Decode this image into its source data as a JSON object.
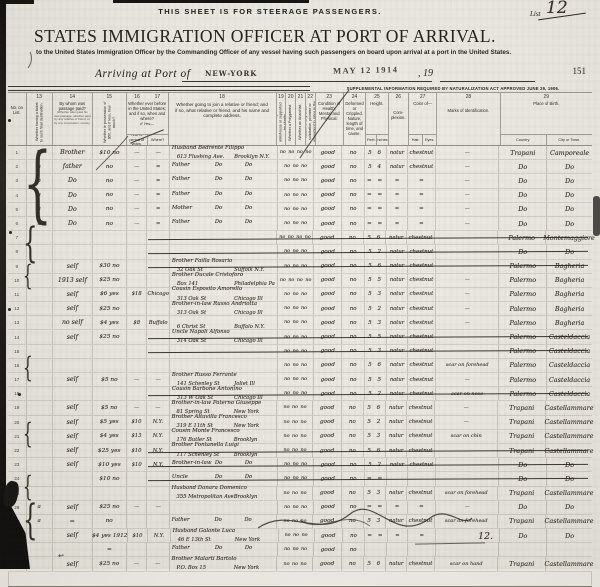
{
  "header": {
    "steerage_notice": "THIS SHEET IS FOR STEERAGE PASSENGERS.",
    "list_label": "List",
    "list_number_hw": "12",
    "title": "STATES IMMIGRATION OFFICER AT PORT OF ARRIVAL.",
    "subtitle": "to the United States Immigration Officer by the Commanding Officer of any vessel having such passengers on board upon arrival at a port in the United States.",
    "arriving_label": "Arriving at Port of",
    "port_hw": "NEW-YORK",
    "date_stamp": "MAY 12 1914",
    "year_printed": ", 19",
    "page_number": "151",
    "supplemental_banner": "SUPPLEMENTAL INFORMATION REQUIRED BY NATURALIZATION ACT APPROVED JUNE 29, 1906."
  },
  "columns": {
    "no_on_list": {
      "num": "",
      "label": "No. on List."
    },
    "c13": {
      "num": "13",
      "label": "Whether having a ticket to such final destination."
    },
    "c14": {
      "num": "14",
      "label": "By whom was passage paid?",
      "note": "(Whether alien paid his own passage, whether paid by any relative or friend, or by any corporation, society, municipality, or government.)"
    },
    "c15": {
      "num": "15",
      "label": "Whether in possession of $50, and if less, how much?"
    },
    "c16_17": {
      "num16": "16",
      "num17": "17",
      "label": "Whether ever before in the United States; and if so, when and where?",
      "if_yes": "If Yes—",
      "sub_year": "Year or period of years.",
      "sub_where": "Where?"
    },
    "c18": {
      "num": "18",
      "label": "Whether going to join a relative or friend; and if so, what relative or friend, and his name and complete address."
    },
    "c19": {
      "num": "19",
      "label": "Whether ever in prison or almshouse or supported by charity."
    },
    "c20": {
      "num": "20",
      "label": "Whether a Polygamist."
    },
    "c21": {
      "num": "21",
      "label": "Whether an Anarchist."
    },
    "c22": {
      "num": "22",
      "label": "Whether coming by reason of any offer, solicitation, promise or agreement to labor in the United States."
    },
    "c23": {
      "num": "23",
      "label": "Condition of Health, Mental and Physical."
    },
    "c24": {
      "num": "24",
      "label": "Deformed or Crippled. Nature, length of time, and cause."
    },
    "c25": {
      "num": "25",
      "label": "Height.",
      "sub_feet": "Feet.",
      "sub_inches": "Inches."
    },
    "c26": {
      "num": "26",
      "label": "Com- plexion."
    },
    "c27": {
      "num": "27",
      "label": "Color of—",
      "sub_hair": "Hair.",
      "sub_eyes": "Eyes."
    },
    "c28": {
      "num": "28",
      "label": "Marks of Identification."
    },
    "c29": {
      "num": "29",
      "label": "Place of Birth.",
      "sub_country": "Country.",
      "sub_city": "City or Town."
    }
  },
  "rows": [
    {
      "t": "1ª",
      "p": "Brother",
      "m": "$10 no",
      "yb": "—",
      "wb": "—",
      "r1": "Husband Bedrente Filippo",
      "r2": "613 Flushing Ave.",
      "rc": "Brooklyn N.Y.",
      "nos": "no no no no",
      "h": "good",
      "d": "no",
      "ht": "5 6",
      "cx": "natur",
      "he": "chestnut",
      "mk": "—",
      "co": "Trapani",
      "ci": "Camporeale",
      "strike": false
    },
    {
      "t": "a",
      "p": "father",
      "m": "no",
      "yb": "—",
      "wb": "=",
      "r1": "Father",
      "r2": "Do",
      "rc": "Do",
      "nos": "no no no",
      "h": "good",
      "d": "no",
      "ht": "5 4",
      "cx": "natur",
      "he": "chestnut",
      "mk": "—",
      "co": "Do",
      "ci": "Do",
      "strike": false
    },
    {
      "t": "a",
      "p": "Do",
      "m": "no",
      "yb": "—",
      "wb": "=",
      "r1": "Father",
      "r2": "Do",
      "rc": "Do",
      "nos": "no no no",
      "h": "good",
      "d": "no",
      "ht": "= =",
      "cx": "=",
      "he": "=",
      "mk": "—",
      "co": "Do",
      "ci": "Do",
      "strike": false
    },
    {
      "t": "a",
      "p": "Do",
      "m": "no",
      "yb": "—",
      "wb": "=",
      "r1": "Father",
      "r2": "Do",
      "rc": "Do",
      "nos": "no no no",
      "h": "good",
      "d": "no",
      "ht": "= =",
      "cx": "=",
      "he": "=",
      "mk": "—",
      "co": "Do",
      "ci": "Do",
      "strike": false
    },
    {
      "t": "a",
      "p": "Do",
      "m": "no",
      "yb": "—",
      "wb": "=",
      "r1": "Mother",
      "r2": "Do",
      "rc": "Do",
      "nos": "no no no",
      "h": "good",
      "d": "no",
      "ht": "= =",
      "cx": "=",
      "he": "=",
      "mk": "—",
      "co": "Do",
      "ci": "Do",
      "strike": false
    },
    {
      "t": "a",
      "p": "Do",
      "m": "no",
      "yb": "—",
      "wb": "=",
      "r1": "Father",
      "r2": "Do",
      "rc": "Do",
      "nos": "no no no",
      "h": "good",
      "d": "no",
      "ht": "= =",
      "cx": "=",
      "he": "=",
      "mk": "—",
      "co": "Do",
      "ci": "Do",
      "strike": false
    },
    {
      "t": "",
      "p": "",
      "m": "",
      "yb": "",
      "wb": "",
      "r1": "",
      "r2": "",
      "rc": "",
      "nos": "no no no no",
      "h": "good",
      "d": "no",
      "ht": "5 6",
      "cx": "natur",
      "he": "chestnut",
      "mk": "",
      "co": "Palermo",
      "ci": "Montemaggiore",
      "strike": true
    },
    {
      "t": "",
      "p": "",
      "m": "",
      "yb": "",
      "wb": "",
      "r1": "",
      "r2": "",
      "rc": "",
      "nos": "no no no",
      "h": "good",
      "d": "no",
      "ht": "5 2",
      "cx": "natur",
      "he": "chestnut",
      "mk": "",
      "co": "Do",
      "ci": "Do",
      "strike": true
    },
    {
      "t": "",
      "p": "self",
      "m": "$30 no",
      "yb": "",
      "wb": "",
      "r1": "Brother Failla Rosario",
      "r2": "32 Oak St",
      "rc": "Suffolk N.Y.",
      "nos": "no no no",
      "h": "good",
      "d": "no",
      "ht": "5 6",
      "cx": "natur",
      "he": "chestnut",
      "mk": "",
      "co": "Palermo",
      "ci": "Bagheria",
      "strike": true
    },
    {
      "t": "",
      "p": "1913 self",
      "m": "$25 no",
      "yb": "",
      "wb": "",
      "r1": "Brother Ducale Cristoforo",
      "r2": "Box 141",
      "rc": "Philadelphia Pa",
      "nos": "no no no no",
      "h": "good",
      "d": "no",
      "ht": "5 5",
      "cx": "natur",
      "he": "chestnut",
      "mk": "—",
      "co": "Palermo",
      "ci": "Bagheria",
      "strike": false
    },
    {
      "t": "",
      "p": "self",
      "m": "$6 yes",
      "yb": "$18",
      "wb": "Chicago",
      "r1": "Cousin Esposito Amorello",
      "r2": "313 Oak St",
      "rc": "Chicago Ill",
      "nos": "no no no",
      "h": "good",
      "d": "no",
      "ht": "5 3",
      "cx": "natur",
      "he": "chestnut",
      "mk": "—",
      "co": "Palermo",
      "ci": "Bagheria",
      "strike": false
    },
    {
      "t": "",
      "p": "self",
      "m": "$25 no",
      "yb": "",
      "wb": "",
      "r1": "Brother-in-law Russo Andriotta",
      "r2": "313 Oak St",
      "rc": "Chicago Ill",
      "nos": "no no no",
      "h": "good",
      "d": "no",
      "ht": "5 2",
      "cx": "natur",
      "he": "chestnut",
      "mk": "—",
      "co": "Palermo",
      "ci": "Bagheria",
      "strike": false
    },
    {
      "t": "",
      "p": "no self",
      "m": "$4 yes",
      "yb": "$8",
      "wb": "Buffalo",
      "r1": "",
      "r2": "6 Christ St",
      "rc": "Buffalo N.Y.",
      "nos": "no no no",
      "h": "good",
      "d": "no",
      "ht": "5 3",
      "cx": "natur",
      "he": "chestnut",
      "mk": "—",
      "co": "Palermo",
      "ci": "Bagheria",
      "strike": false
    },
    {
      "t": "",
      "p": "self",
      "m": "$25 no",
      "yb": "",
      "wb": "",
      "r1": "Uncle Napoli Alfonso",
      "r2": "314 Oak St",
      "rc": "Chicago Ill",
      "nos": "no no no",
      "h": "good",
      "d": "no",
      "ht": "5 5",
      "cx": "natur",
      "he": "chestnut",
      "mk": "",
      "co": "Palermo",
      "ci": "Casteldaccia",
      "strike": true
    },
    {
      "t": "",
      "p": "",
      "m": "",
      "yb": "",
      "wb": "",
      "r1": "",
      "r2": "",
      "rc": "",
      "nos": "no no no",
      "h": "good",
      "d": "no",
      "ht": "5 3",
      "cx": "natur",
      "he": "chestnut",
      "mk": "",
      "co": "Palermo",
      "ci": "Casteldaccia",
      "strike": true
    },
    {
      "t": "",
      "p": "",
      "m": "",
      "yb": "",
      "wb": "",
      "r1": "",
      "r2": "",
      "rc": "",
      "nos": "no no no",
      "h": "good",
      "d": "no",
      "ht": "5 6",
      "cx": "natur",
      "he": "chestnut",
      "mk": "scar on forehead",
      "co": "Palermo",
      "ci": "Casteldaccia",
      "strike": false
    },
    {
      "t": "",
      "p": "self",
      "m": "$5 no",
      "yb": "—",
      "wb": "—",
      "r1": "Brother Russo Ferrante",
      "r2": "141 Schenley St",
      "rc": "Joliet Ill",
      "nos": "no no no",
      "h": "good",
      "d": "no",
      "ht": "5 5",
      "cx": "natur",
      "he": "chestnut",
      "mk": "—",
      "co": "Palermo",
      "ci": "Casteldaccia",
      "strike": false
    },
    {
      "t": "",
      "p": "",
      "m": "",
      "yb": "",
      "wb": "",
      "r1": "Cousin Barbone Antonino",
      "r2": "313 W Oak St",
      "rc": "Chicago Ill",
      "nos": "no no no",
      "h": "good",
      "d": "no",
      "ht": "5 2",
      "cx": "natur",
      "he": "chestnut",
      "mk": "scar on nose",
      "co": "Palermo",
      "ci": "Casteldaccia",
      "strike": true
    },
    {
      "t": "",
      "p": "self",
      "m": "$5 no",
      "yb": "—",
      "wb": "—",
      "r1": "Brother-in-law Paterno Giuseppe",
      "r2": "81 Spring St",
      "rc": "New York",
      "nos": "no no no",
      "h": "good",
      "d": "no",
      "ht": "5 6",
      "cx": "natur",
      "he": "chestnut",
      "mk": "—",
      "co": "Trapani",
      "ci": "Castellammare",
      "strike": false
    },
    {
      "t": "",
      "p": "self",
      "m": "$5 yes",
      "yb": "$10",
      "wb": "N.Y.",
      "r1": "Brother Altavilla Francesco",
      "r2": "319 E 11th St",
      "rc": "New York",
      "nos": "no no no",
      "h": "good",
      "d": "no",
      "ht": "5 2",
      "cx": "natur",
      "he": "chestnut",
      "mk": "—",
      "co": "Trapani",
      "ci": "Castellammare",
      "strike": false
    },
    {
      "t": "",
      "p": "self",
      "m": "$4 yes",
      "yb": "$13",
      "wb": "N.Y.",
      "r1": "Cousin Monte Francesco",
      "r2": "176 Butler St",
      "rc": "Brooklyn",
      "nos": "no no no",
      "h": "good",
      "d": "no",
      "ht": "5 3",
      "cx": "natur",
      "he": "chestnut",
      "mk": "scar on chin",
      "co": "Trapani",
      "ci": "Castellammare",
      "strike": false
    },
    {
      "t": "",
      "p": "self",
      "m": "$25 yes",
      "yb": "$10",
      "wb": "N.Y.",
      "r1": "Brother Fontanella Luigi",
      "r2": "117 Schenley St",
      "rc": "Brooklyn",
      "nos": "no no no",
      "h": "good",
      "d": "no",
      "ht": "5 6",
      "cx": "natur",
      "he": "chestnut",
      "mk": "",
      "co": "Trapani",
      "ci": "Castellammare",
      "strike": true
    },
    {
      "t": "",
      "p": "self",
      "m": "$10 yes",
      "yb": "$10",
      "wb": "N.Y.",
      "r1": "Brother-in-law",
      "r2": "Do",
      "rc": "Do",
      "nos": "no no no",
      "h": "good",
      "d": "no",
      "ht": "5 2",
      "cx": "natur",
      "he": "chestnut",
      "mk": "",
      "co": "Do",
      "ci": "Do",
      "strike": true
    },
    {
      "t": "",
      "p": "",
      "m": "$10 no",
      "yb": "",
      "wb": "",
      "r1": "Uncle",
      "r2": "Do",
      "rc": "Do",
      "nos": "no no no",
      "h": "good",
      "d": "no",
      "ht": "= =",
      "cx": "",
      "he": "",
      "mk": "",
      "co": "Do",
      "ci": "Do",
      "strike": true
    },
    {
      "t": "",
      "p": "",
      "m": "",
      "yb": "",
      "wb": "",
      "r1": "Husband Danara Domenico",
      "r2": "355 Metropolitan Ave",
      "rc": "Brooklyn",
      "nos": "no no no",
      "h": "good",
      "d": "no",
      "ht": "5 3",
      "cx": "natur",
      "he": "chestnut",
      "mk": "scar on forehead",
      "co": "Trapani",
      "ci": "Castellammare",
      "strike": false
    },
    {
      "t": "a",
      "p": "self",
      "m": "$25 no",
      "yb": "—",
      "wb": "—",
      "r1": "",
      "r2": "",
      "rc": "",
      "nos": "no no no",
      "h": "good",
      "d": "no",
      "ht": "= =",
      "cx": "=",
      "he": "=",
      "mk": "—",
      "co": "Do",
      "ci": "Do",
      "strike": false
    },
    {
      "t": "a",
      "p": "=",
      "m": "no",
      "yb": "",
      "wb": "",
      "r1": "Father",
      "r2": "Do",
      "rc": "Do",
      "nos": "no no no",
      "h": "good",
      "d": "no",
      "ht": "5 3",
      "cx": "natur",
      "he": "chestnut",
      "mk": "scar on forehead",
      "co": "Trapani",
      "ci": "Castellammare",
      "strike": false
    },
    {
      "t": "",
      "p": "self",
      "m": "$4 yes 1912",
      "yb": "$10",
      "wb": "N.Y.",
      "r1": "Husband Galante Luca",
      "r2": "46 E 13th St",
      "rc": "New York",
      "nos": "no no no",
      "h": "good",
      "d": "no",
      "ht": "= =",
      "cx": "=",
      "he": "=",
      "mk": "",
      "co": "Do",
      "ci": "Do",
      "strike": false
    },
    {
      "t": "",
      "p": "",
      "m": "=",
      "yb": "",
      "wb": "",
      "r1": "Father",
      "r2": "Do",
      "rc": "Do",
      "nos": "no no no",
      "h": "good",
      "d": "no",
      "ht": "",
      "cx": "",
      "he": "",
      "mk": "",
      "co": "",
      "ci": "",
      "strike": false
    },
    {
      "t": "",
      "p": "self",
      "m": "$25 no",
      "yb": "—",
      "wb": "—",
      "r1": "Brother Malarti Bartolo",
      "r2": "P.O. Box 15",
      "rc": "New York",
      "nos": "no no no",
      "h": "good",
      "d": "no",
      "ht": "5 6",
      "cx": "natur",
      "he": "chestnut",
      "mk": "scar on hand",
      "co": "Trapani",
      "ci": "Castellammare",
      "strike": false
    }
  ],
  "brackets": [
    {
      "from": 1,
      "to": 6
    },
    {
      "from": 7,
      "to": 9
    },
    {
      "from": 10,
      "to": 11
    },
    {
      "from": 17,
      "to": 18
    },
    {
      "from": 22,
      "to": 23
    },
    {
      "from": 26,
      "to": 27
    },
    {
      "from": 28,
      "to": 30
    }
  ],
  "footer": {
    "sheet_mark_hw": "12."
  }
}
